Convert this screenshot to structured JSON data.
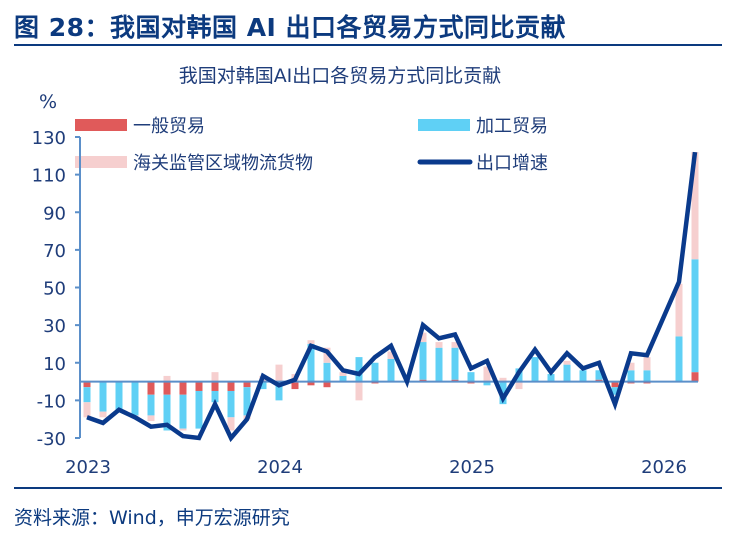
{
  "figure_title": "图 28：我国对韩国 AI 出口各贸易方式同比贡献",
  "source": "资料来源：Wind，申万宏源研究",
  "colors": {
    "general_trade": "#e05a5a",
    "processing_trade": "#5fd0f5",
    "bonded_logistics": "#f6cfcf",
    "export_growth": "#0a3a8c",
    "axis": "#5b8fc9",
    "text": "#1f3d7a"
  },
  "chart_data": {
    "type": "bar",
    "stacked": true,
    "title": "我国对韩国AI出口各贸易方式同比贡献",
    "ylabel": "%",
    "ylim": [
      -30,
      130
    ],
    "yticks": [
      -30,
      -10,
      10,
      30,
      50,
      70,
      90,
      110,
      130
    ],
    "xtick_labels": [
      "2023",
      "2024",
      "2025",
      "2026"
    ],
    "legend_position": "top",
    "grid": false,
    "categories": [
      "2023-01",
      "2023-02",
      "2023-03",
      "2023-04",
      "2023-05",
      "2023-06",
      "2023-07",
      "2023-08",
      "2023-09",
      "2023-10",
      "2023-11",
      "2023-12",
      "2024-01",
      "2024-02",
      "2024-03",
      "2024-04",
      "2024-05",
      "2024-06",
      "2024-07",
      "2024-08",
      "2024-09",
      "2024-10",
      "2024-11",
      "2024-12",
      "2025-01",
      "2025-02",
      "2025-03",
      "2025-04",
      "2025-05",
      "2025-06",
      "2025-07",
      "2025-08",
      "2025-09",
      "2025-10",
      "2025-11",
      "2025-12",
      "2026-01",
      "2026-02",
      "2026-03"
    ],
    "series": [
      {
        "name": "一般贸易",
        "kind": "bar",
        "values": [
          -3,
          0,
          0,
          0,
          -7,
          -7,
          -7,
          -5,
          -5,
          -5,
          -3,
          0,
          0,
          -4,
          -2,
          -3,
          0,
          0,
          -1,
          0,
          0,
          1,
          0,
          1,
          -1,
          0,
          0,
          0,
          0,
          0,
          0,
          0,
          1,
          -3,
          -1,
          -1,
          null,
          0,
          5
        ]
      },
      {
        "name": "加工贸易",
        "kind": "bar",
        "values": [
          -8,
          -16,
          -15,
          -18,
          -11,
          -19,
          -18,
          -20,
          -6,
          -14,
          -15,
          -4,
          -10,
          0,
          20,
          10,
          3,
          13,
          10,
          12,
          0,
          20,
          18,
          17,
          5,
          -2,
          -12,
          7,
          13,
          4,
          9,
          6,
          5,
          -4,
          6,
          6,
          null,
          24,
          60
        ]
      },
      {
        "name": "海关监管区域物流货物",
        "kind": "bar",
        "values": [
          -8,
          -3,
          0,
          -1,
          -3,
          3,
          -1,
          0,
          5,
          -7,
          -2,
          3,
          9,
          4,
          2,
          8,
          2,
          -10,
          0,
          4,
          0,
          5,
          3,
          3,
          0,
          8,
          2,
          -4,
          0,
          0,
          2,
          0,
          0,
          0,
          4,
          7,
          null,
          28,
          57
        ]
      },
      {
        "name": "出口增速",
        "kind": "line",
        "values": [
          -19,
          -22,
          -15,
          -19,
          -24,
          -23,
          -29,
          -30,
          -12,
          -30,
          -20,
          3,
          -2,
          1,
          19,
          16,
          6,
          4,
          13,
          19,
          0,
          30,
          23,
          25,
          7,
          11,
          -9,
          5,
          17,
          5,
          15,
          7,
          10,
          -12,
          15,
          14,
          null,
          53,
          122
        ]
      }
    ]
  }
}
